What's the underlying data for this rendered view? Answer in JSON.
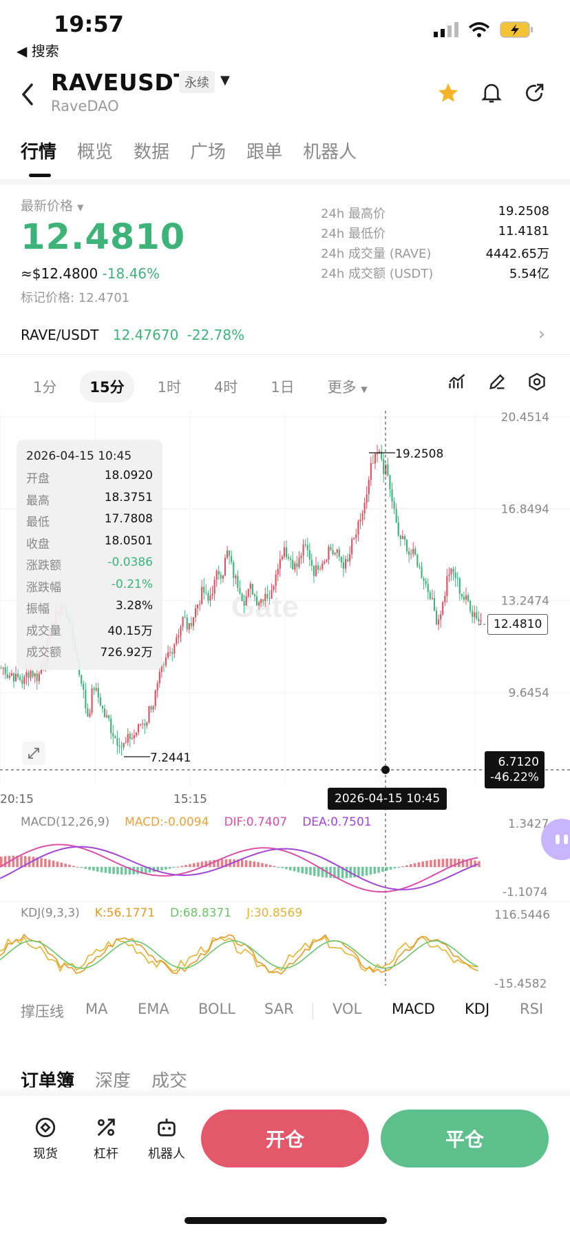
{
  "status_bar": {
    "time": "19:57",
    "back_app": "◀ 搜索"
  },
  "header": {
    "symbol": "RAVEUSDT",
    "badge": "永续",
    "subtitle": "RaveDAO",
    "icons": [
      "back-icon",
      "star-icon",
      "bell-icon",
      "share-icon"
    ],
    "star_color": "#f5b52a"
  },
  "tabs": [
    "行情",
    "概览",
    "数据",
    "广场",
    "跟单",
    "机器人"
  ],
  "price": {
    "label": "最新价格",
    "last": "12.4810",
    "usd": "≈$12.4800",
    "change": "-18.46%",
    "mark": "标记价格: 12.4701"
  },
  "stats": [
    {
      "label": "24h 最高价",
      "value": "19.2508"
    },
    {
      "label": "24h 最低价",
      "value": "11.4181"
    },
    {
      "label": "24h 成交量 (RAVE)",
      "value": "4442.65万"
    },
    {
      "label": "24h 成交额 (USDT)",
      "value": "5.54亿"
    }
  ],
  "spot": {
    "pair": "RAVE/USDT",
    "price": "12.47670",
    "change": "-22.78%"
  },
  "intervals": [
    "1分",
    "15分",
    "1时",
    "4时",
    "1日",
    "更多"
  ],
  "active_interval": 1,
  "ohlc": {
    "datetime": "2026-04-15 10:45",
    "rows": [
      {
        "label": "开盘",
        "value": "18.0920"
      },
      {
        "label": "最高",
        "value": "18.3751"
      },
      {
        "label": "最低",
        "value": "17.7808"
      },
      {
        "label": "收盘",
        "value": "18.0501"
      },
      {
        "label": "涨跌额",
        "value": "-0.0386"
      },
      {
        "label": "涨跌幅",
        "value": "-0.21%"
      },
      {
        "label": "振幅",
        "value": "3.28%"
      },
      {
        "label": "成交量",
        "value": "40.15万"
      },
      {
        "label": "成交额",
        "value": "726.92万"
      }
    ]
  },
  "chart_data": {
    "type": "candlestick",
    "y_ticks": [
      "20.4514",
      "16.8494",
      "13.2474",
      "9.6454"
    ],
    "ylim": [
      6.0,
      20.4514
    ],
    "x_ticks": [
      "20:15",
      "15:15"
    ],
    "high_label": "19.2508",
    "low_label": "7.2441",
    "current_price": "12.4810",
    "crosshair_value": "6.7120",
    "crosshair_change": "-46.22%",
    "crosshair_time": "2026-04-15 10:45",
    "watermark": "Gate",
    "closes": [
      10.6,
      10.4,
      10.2,
      10.1,
      10.5,
      10.3,
      10.9,
      11.8,
      12.6,
      13.0,
      12.6,
      11.4,
      10.2,
      8.8,
      9.9,
      9.3,
      8.6,
      8.1,
      7.8,
      7.6,
      7.9,
      8.2,
      8.5,
      9.2,
      9.8,
      10.5,
      11.2,
      11.9,
      12.5,
      12.1,
      12.9,
      13.5,
      13.2,
      13.9,
      14.4,
      15.1,
      14.3,
      13.8,
      13.4,
      13.7,
      13.3,
      13.6,
      13.5,
      14.8,
      15.4,
      14.9,
      14.6,
      15.2,
      15.0,
      14.4,
      14.9,
      15.3,
      15.1,
      14.8,
      14.7,
      15.6,
      16.2,
      17.3,
      18.6,
      18.9,
      18.3,
      17.2,
      15.8,
      15.5,
      15.1,
      14.8,
      14.2,
      13.6,
      12.6,
      13.1,
      14.4,
      14.2,
      13.5,
      13.2,
      12.8,
      12.48
    ]
  },
  "macd": {
    "legend": "MACD(12,26,9)",
    "macd": "MACD:-0.0094",
    "dif": "DIF:0.7407",
    "dea": "DEA:0.7501",
    "y_top": "1.3427",
    "y_bottom": "-1.1074",
    "colors": {
      "macd": "#e8a23a",
      "dif": "#d94fa8",
      "dea": "#a245d6"
    }
  },
  "kdj": {
    "legend": "KDJ(9,3,3)",
    "k": "K:56.1771",
    "d": "D:68.8371",
    "j": "J:30.8569",
    "y_top": "116.5446",
    "y_bottom": "-15.4582",
    "colors": {
      "k": "#e59a2c",
      "d": "#6ac46a",
      "j": "#e3b431"
    }
  },
  "indicator_tabs": [
    "撑压线",
    "MA",
    "EMA",
    "BOLL",
    "SAR",
    "VOL",
    "MACD",
    "KDJ",
    "RSI"
  ],
  "order_tabs": [
    "订单簿",
    "深度",
    "成交"
  ],
  "bottom_bar": {
    "spot": "现货",
    "leverage": "杠杆",
    "bot": "机器人",
    "open": "开仓",
    "close": "平仓"
  },
  "colors": {
    "up": "#e0505e",
    "down": "#3db37a",
    "accent_open": "#e5576a",
    "accent_close": "#5dbf8c"
  }
}
